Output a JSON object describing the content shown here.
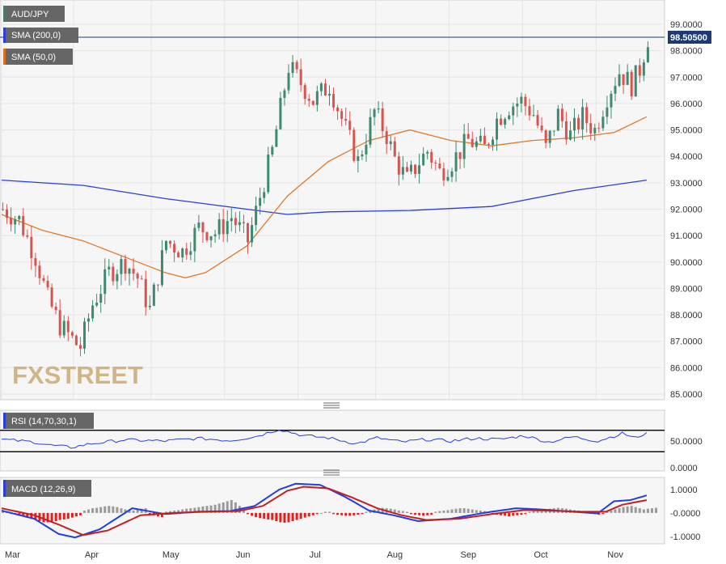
{
  "chart_data": {
    "type": "candlestick",
    "symbol": "AUD/JPY",
    "watermark": "FXSTREET",
    "last_price": "98.50500",
    "x_ticks": [
      "Mar",
      "Apr",
      "May",
      "Jun",
      "Jul",
      "Aug",
      "Sep",
      "Oct",
      "Nov"
    ],
    "y_ticks": [
      "99.0000",
      "98.0000",
      "97.0000",
      "96.0000",
      "95.0000",
      "94.0000",
      "93.0000",
      "92.0000",
      "91.0000",
      "90.0000",
      "89.0000",
      "88.0000",
      "87.0000",
      "86.0000",
      "85.0000"
    ],
    "ylim": [
      84.8,
      99.6
    ],
    "legend": [
      {
        "label": "AUD/JPY",
        "color": "#4a7a66"
      },
      {
        "label": "SMA (200,0)",
        "color": "#2a3fd6"
      },
      {
        "label": "SMA (50,0)",
        "color": "#e07020"
      }
    ],
    "colors": {
      "up": "#3e8a6e",
      "down": "#d9534f",
      "sma200": "#2a3fd6",
      "sma50": "#e07a2a",
      "last_label_bg": "#1f3a73"
    },
    "close_path": [
      [
        0,
        92.0
      ],
      [
        4,
        91.6
      ],
      [
        8,
        90.2
      ],
      [
        11,
        88.6
      ],
      [
        14,
        87.6
      ],
      [
        18,
        86.9
      ],
      [
        19,
        86.8
      ],
      [
        22,
        88.4
      ],
      [
        26,
        89.6
      ],
      [
        30,
        90.0
      ],
      [
        33,
        89.4
      ],
      [
        36,
        88.2
      ],
      [
        40,
        90.8
      ],
      [
        44,
        90.4
      ],
      [
        48,
        91.3
      ],
      [
        52,
        91.1
      ],
      [
        56,
        91.7
      ],
      [
        60,
        90.8
      ],
      [
        62,
        91.9
      ],
      [
        66,
        94.2
      ],
      [
        70,
        97.4
      ],
      [
        72,
        97.0
      ],
      [
        76,
        96.1
      ],
      [
        80,
        96.7
      ],
      [
        84,
        95.0
      ],
      [
        87,
        93.8
      ],
      [
        91,
        95.7
      ],
      [
        94,
        94.8
      ],
      [
        96,
        93.9
      ],
      [
        99,
        93.1
      ],
      [
        102,
        93.8
      ],
      [
        104,
        94.2
      ],
      [
        107,
        93.4
      ],
      [
        110,
        93.8
      ],
      [
        114,
        94.6
      ],
      [
        118,
        94.3
      ],
      [
        121,
        95.4
      ],
      [
        124,
        95.9
      ],
      [
        127,
        96.1
      ],
      [
        130,
        95.6
      ],
      [
        133,
        94.3
      ],
      [
        136,
        95.6
      ],
      [
        139,
        94.8
      ],
      [
        142,
        95.5
      ],
      [
        145,
        95.0
      ],
      [
        148,
        96.3
      ],
      [
        151,
        97.2
      ],
      [
        154,
        96.7
      ],
      [
        156,
        97.3
      ],
      [
        158,
        98.5
      ]
    ],
    "sma200": {
      "x": [
        0,
        20,
        40,
        60,
        70,
        80,
        100,
        120,
        140,
        158
      ],
      "y": [
        93.1,
        92.9,
        92.4,
        92.0,
        91.8,
        91.9,
        91.95,
        92.1,
        92.7,
        93.1
      ]
    },
    "sma50": {
      "x": [
        0,
        10,
        20,
        30,
        40,
        45,
        50,
        60,
        70,
        80,
        90,
        100,
        110,
        120,
        130,
        140,
        150,
        158
      ],
      "y": [
        91.8,
        91.2,
        90.8,
        90.2,
        89.6,
        89.4,
        89.6,
        90.6,
        92.5,
        93.8,
        94.6,
        95.0,
        94.6,
        94.4,
        94.6,
        94.7,
        94.9,
        95.5
      ]
    },
    "rsi": {
      "title": "RSI (14,70,30,1)",
      "ticks": [
        "50.0000",
        "0.0000"
      ],
      "ylim": [
        0,
        100
      ],
      "levels": [
        70,
        30
      ],
      "path": [
        [
          0,
          53
        ],
        [
          8,
          48
        ],
        [
          12,
          42
        ],
        [
          17,
          38
        ],
        [
          22,
          45
        ],
        [
          30,
          52
        ],
        [
          40,
          50
        ],
        [
          48,
          55
        ],
        [
          56,
          51
        ],
        [
          62,
          58
        ],
        [
          68,
          72
        ],
        [
          74,
          60
        ],
        [
          80,
          56
        ],
        [
          87,
          45
        ],
        [
          92,
          56
        ],
        [
          98,
          48
        ],
        [
          104,
          53
        ],
        [
          110,
          50
        ],
        [
          116,
          55
        ],
        [
          122,
          53
        ],
        [
          128,
          60
        ],
        [
          134,
          48
        ],
        [
          140,
          58
        ],
        [
          146,
          50
        ],
        [
          152,
          64
        ],
        [
          156,
          55
        ],
        [
          158,
          68
        ]
      ]
    },
    "macd": {
      "title": "MACD (12,26,9)",
      "ticks": [
        "1.0000",
        "-0.0000",
        "-1.0000"
      ],
      "ylim": [
        -1.25,
        1.45
      ],
      "macd_line": [
        [
          0,
          0.1
        ],
        [
          8,
          -0.25
        ],
        [
          14,
          -0.9
        ],
        [
          18,
          -1.05
        ],
        [
          24,
          -0.7
        ],
        [
          32,
          0.2
        ],
        [
          40,
          -0.05
        ],
        [
          48,
          0.05
        ],
        [
          56,
          0.08
        ],
        [
          62,
          0.3
        ],
        [
          68,
          1.0
        ],
        [
          72,
          1.25
        ],
        [
          78,
          1.2
        ],
        [
          84,
          0.7
        ],
        [
          90,
          0.1
        ],
        [
          96,
          -0.1
        ],
        [
          102,
          -0.35
        ],
        [
          110,
          -0.25
        ],
        [
          118,
          0.0
        ],
        [
          126,
          0.2
        ],
        [
          132,
          0.15
        ],
        [
          140,
          0.05
        ],
        [
          146,
          -0.02
        ],
        [
          150,
          0.5
        ],
        [
          154,
          0.55
        ],
        [
          158,
          0.75
        ]
      ],
      "signal_line": [
        [
          0,
          0.2
        ],
        [
          8,
          -0.1
        ],
        [
          14,
          -0.5
        ],
        [
          20,
          -0.95
        ],
        [
          26,
          -0.75
        ],
        [
          34,
          -0.1
        ],
        [
          42,
          0.0
        ],
        [
          50,
          0.05
        ],
        [
          58,
          0.08
        ],
        [
          64,
          0.3
        ],
        [
          70,
          0.95
        ],
        [
          74,
          1.12
        ],
        [
          80,
          1.05
        ],
        [
          86,
          0.65
        ],
        [
          92,
          0.2
        ],
        [
          98,
          -0.1
        ],
        [
          104,
          -0.3
        ],
        [
          112,
          -0.25
        ],
        [
          120,
          -0.05
        ],
        [
          128,
          0.12
        ],
        [
          134,
          0.1
        ],
        [
          142,
          0.05
        ],
        [
          148,
          0.05
        ],
        [
          152,
          0.35
        ],
        [
          158,
          0.55
        ]
      ],
      "histogram": [
        0.1,
        0.05,
        0,
        -0.05,
        -0.1,
        -0.15,
        -0.2,
        -0.25,
        -0.3,
        -0.35,
        -0.4,
        -0.4,
        -0.38,
        -0.35,
        -0.3,
        -0.28,
        -0.25,
        -0.2,
        -0.15,
        -0.1,
        0.1,
        0.15,
        0.2,
        0.22,
        0.25,
        0.28,
        0.3,
        0.28,
        0.25,
        0.2,
        0.15,
        0.1,
        0.1,
        0.15,
        0.18,
        0.2,
        -0.05,
        -0.1,
        -0.15,
        -0.18,
        0.05,
        0.08,
        0.1,
        0.12,
        0.15,
        0.18,
        0.2,
        0.22,
        0.25,
        0.28,
        0.3,
        0.32,
        0.35,
        0.4,
        0.45,
        0.5,
        0.55,
        0.45,
        0.3,
        0.15,
        -0.05,
        -0.12,
        -0.18,
        -0.22,
        -0.25,
        -0.28,
        -0.3,
        -0.35,
        -0.4,
        -0.42,
        -0.4,
        -0.35,
        -0.3,
        -0.25,
        -0.2,
        -0.15,
        -0.1,
        -0.05,
        0,
        0.05,
        0.05,
        -0.05,
        -0.08,
        -0.1,
        -0.12,
        -0.12,
        -0.1,
        -0.08,
        -0.05,
        0.05,
        0.1,
        0.15,
        0.2,
        0.22,
        0.2,
        0.18,
        0.15,
        0.1,
        0.08,
        0.05,
        -0.05,
        -0.08,
        -0.1,
        -0.12,
        -0.1,
        -0.08,
        0.05,
        0.08,
        0.1,
        0.12,
        0.15,
        0.18,
        0.2,
        0.2,
        0.18,
        0.15,
        0.12,
        0.1,
        0.08,
        0.05,
        -0.05,
        -0.08,
        -0.1,
        -0.12,
        -0.15,
        -0.12,
        -0.1,
        -0.08,
        -0.05,
        0.05,
        0.08,
        0.1,
        0.12,
        0.15,
        0.18,
        0.2,
        0.22,
        0.2,
        0.18,
        0.15,
        0.12,
        0.1,
        0.08,
        0.05,
        -0.03,
        -0.05,
        -0.08,
        -0.05,
        0.05,
        0.1,
        0.15,
        0.2,
        0.25,
        0.28,
        0.3,
        0.25,
        0.2,
        0.15,
        0.18,
        0.2,
        0.22
      ]
    }
  }
}
